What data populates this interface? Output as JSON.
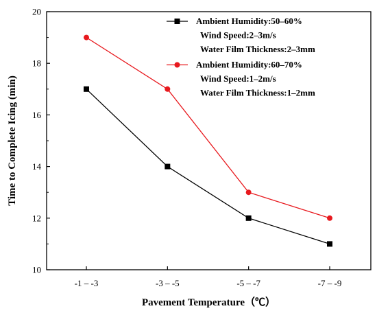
{
  "chart_data": {
    "type": "line",
    "xlabel": "Pavement Temperature（℃）",
    "ylabel": "Time to Complete Icing (min)",
    "categories": [
      "-1 – -3",
      "-3 – -5",
      "-5 – -7",
      "-7 – -9"
    ],
    "yticks": [
      10,
      12,
      14,
      16,
      18,
      20
    ],
    "ylim": [
      10,
      20
    ],
    "grid": false,
    "legend_position": "top-right",
    "series": [
      {
        "legend_lines": [
          "Ambient Humidity:50–60%",
          "Wind Speed:2–3m/s",
          "Water Film Thickness:2–3mm"
        ],
        "marker": "square",
        "color": "#000000",
        "values": [
          17,
          14,
          12,
          11
        ]
      },
      {
        "legend_lines": [
          "Ambient  Humidity:60–70%",
          "Wind Speed:1–2m/s",
          "Water Film Thickness:1–2mm"
        ],
        "marker": "circle",
        "color": "#e8191e",
        "values": [
          19,
          17,
          13,
          12
        ]
      }
    ]
  }
}
